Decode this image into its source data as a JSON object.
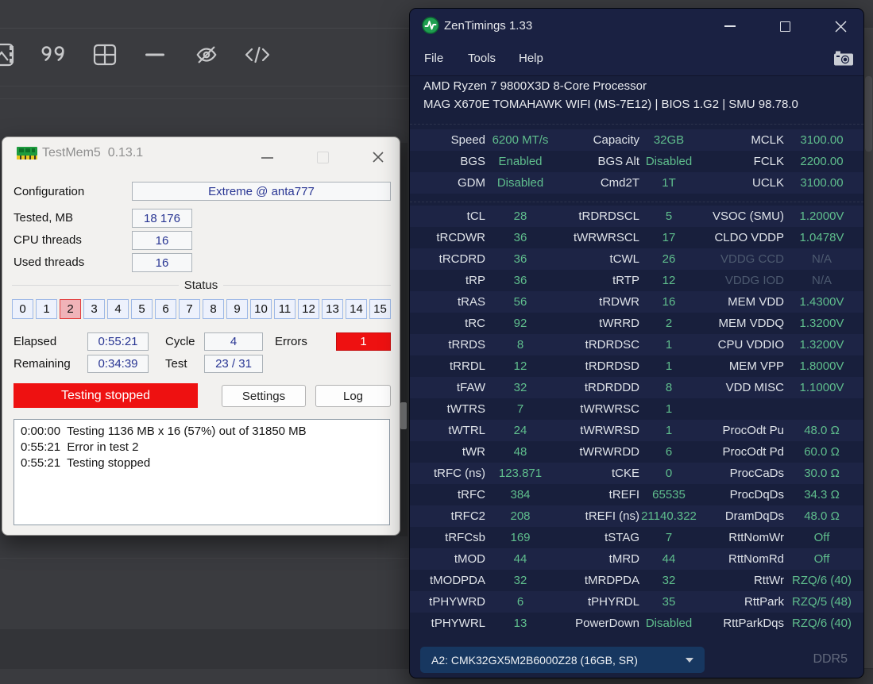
{
  "background": {
    "toolbar_icons": [
      "media-icon",
      "quote-icon",
      "table-icon",
      "horizontal-rule-icon",
      "eye-off-icon",
      "code-icon"
    ]
  },
  "testmem5": {
    "title": "TestMem5  0.13.1",
    "fields": {
      "configuration_label": "Configuration",
      "configuration_value": "Extreme @ anta777",
      "tested_label": "Tested, MB",
      "tested_value": "18 176",
      "cpu_threads_label": "CPU threads",
      "cpu_threads_value": "16",
      "used_threads_label": "Used threads",
      "used_threads_value": "16"
    },
    "status": {
      "group_label": "Status",
      "cells": [
        "0",
        "1",
        "2",
        "3",
        "4",
        "5",
        "6",
        "7",
        "8",
        "9",
        "10",
        "11",
        "12",
        "13",
        "14",
        "15"
      ],
      "error_cell": "2"
    },
    "progress": {
      "elapsed_label": "Elapsed",
      "elapsed_value": "0:55:21",
      "cycle_label": "Cycle",
      "cycle_value": "4",
      "errors_label": "Errors",
      "errors_value": "1",
      "remaining_label": "Remaining",
      "remaining_value": "0:34:39",
      "test_label": "Test",
      "test_value": "23 / 31"
    },
    "banner": "Testing stopped",
    "buttons": {
      "settings": "Settings",
      "log": "Log"
    },
    "log_lines": [
      "0:00:00  Testing 1136 MB x 16 (57%) out of 31850 MB",
      "0:55:21  Error in test 2",
      "0:55:21  Testing stopped"
    ],
    "colors": {
      "error_red": "#ee1111",
      "field_text_navy": "#283593",
      "status_error_bg": "#f0b3b8"
    }
  },
  "zentimings": {
    "title": "ZenTimings 1.33",
    "menu": [
      "File",
      "Tools",
      "Help"
    ],
    "cpu_line1": "AMD Ryzen 7 9800X3D 8-Core Processor",
    "cpu_line2": "MAG X670E TOMAHAWK WIFI (MS-7E12) | BIOS 1.G2 | SMU 98.78.0",
    "top_rows": [
      [
        "Speed",
        "6200 MT/s",
        "Capacity",
        "32GB",
        "MCLK",
        "3100.00"
      ],
      [
        "BGS",
        "Enabled",
        "BGS Alt",
        "Disabled",
        "FCLK",
        "2200.00"
      ],
      [
        "GDM",
        "Disabled",
        "Cmd2T",
        "1T",
        "UCLK",
        "3100.00"
      ]
    ],
    "rows": [
      [
        "tCL",
        "28",
        "tRDRDSCL",
        "5",
        "VSOC (SMU)",
        "1.2000V"
      ],
      [
        "tRCDWR",
        "36",
        "tWRWRSCL",
        "17",
        "CLDO VDDP",
        "1.0478V"
      ],
      [
        "tRCDRD",
        "36",
        "tCWL",
        "26",
        "VDDG CCD",
        "N/A"
      ],
      [
        "tRP",
        "36",
        "tRTP",
        "12",
        "VDDG IOD",
        "N/A"
      ],
      [
        "tRAS",
        "56",
        "tRDWR",
        "16",
        "MEM VDD",
        "1.4300V"
      ],
      [
        "tRC",
        "92",
        "tWRRD",
        "2",
        "MEM VDDQ",
        "1.3200V"
      ],
      [
        "tRRDS",
        "8",
        "tRDRDSC",
        "1",
        "CPU VDDIO",
        "1.3200V"
      ],
      [
        "tRRDL",
        "12",
        "tRDRDSD",
        "1",
        "MEM VPP",
        "1.8000V"
      ],
      [
        "tFAW",
        "32",
        "tRDRDDD",
        "8",
        "VDD MISC",
        "1.1000V"
      ],
      [
        "tWTRS",
        "7",
        "tWRWRSC",
        "1",
        "",
        ""
      ],
      [
        "tWTRL",
        "24",
        "tWRWRSD",
        "1",
        "ProcOdt Pu",
        "48.0 Ω"
      ],
      [
        "tWR",
        "48",
        "tWRWRDD",
        "6",
        "ProcOdt Pd",
        "60.0 Ω"
      ],
      [
        "tRFC (ns)",
        "123.871",
        "tCKE",
        "0",
        "ProcCaDs",
        "30.0 Ω"
      ],
      [
        "tRFC",
        "384",
        "tREFI",
        "65535",
        "ProcDqDs",
        "34.3 Ω"
      ],
      [
        "tRFC2",
        "208",
        "tREFI (ns)",
        "21140.322",
        "DramDqDs",
        "48.0 Ω"
      ],
      [
        "tRFCsb",
        "169",
        "tSTAG",
        "7",
        "RttNomWr",
        "Off"
      ],
      [
        "tMOD",
        "44",
        "tMRD",
        "44",
        "RttNomRd",
        "Off"
      ],
      [
        "tMODPDA",
        "32",
        "tMRDPDA",
        "32",
        "RttWr",
        "RZQ/6 (40)"
      ],
      [
        "tPHYWRD",
        "6",
        "tPHYRDL",
        "35",
        "RttPark",
        "RZQ/5 (48)"
      ],
      [
        "tPHYWRL",
        "13",
        "PowerDown",
        "Disabled",
        "RttParkDqs",
        "RZQ/6 (40)"
      ]
    ],
    "muted_cells": [
      [
        2,
        4
      ],
      [
        2,
        5
      ],
      [
        3,
        4
      ],
      [
        3,
        5
      ]
    ],
    "dram_selector": "A2: CMK32GX5M2B6000Z28 (16GB, SR)",
    "memory_type": "DDR5",
    "colors": {
      "value_green": "#5fbe8d",
      "muted_gray": "#4d5a70",
      "dropdown_bg": "#173760",
      "window_bg": "#181f3c"
    }
  }
}
